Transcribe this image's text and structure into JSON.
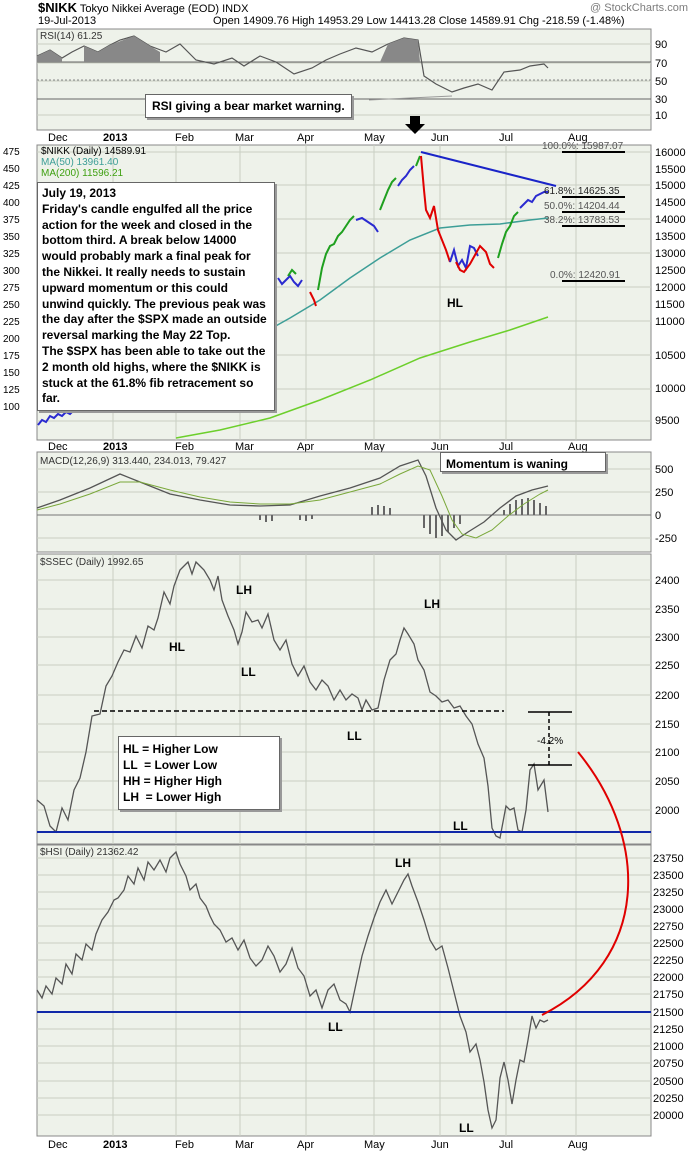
{
  "header": {
    "symbol": "$NIKK",
    "name": "Tokyo Nikkei Average (EOD)",
    "exchange": "INDX",
    "date": "19-Jul-2013",
    "ohlc": "Open 14909.76  High 14953.29  Low 14413.28  Close 14589.91  Chg -218.59 (-1.48%)",
    "watermark": "@ StockCharts.com"
  },
  "annotations": {
    "rsi_note": "RSI giving a bear market warning.",
    "momentum_note": "Momentum is waning",
    "main_note_title": "July 19, 2013",
    "main_note_body": "Friday's candle engulfed all the price action for the week and closed in the bottom third. A break below 14000 would probably mark a final peak for the Nikkei. It really needs to sustain upward momentum or this could unwind quickly. The previous peak was the day after the $SPX made an outside reversal marking the May 22 Top.\nThe $SPX has been able to take out the 2 month old highs, where the $NIKK is stuck at the 61.8% fib retracement so far.",
    "legend": [
      "HL = Higher Low",
      "LL  = Lower Low",
      "HH = Higher High",
      "LH  = Lower High"
    ],
    "pct_label": "-4.2%"
  },
  "colors": {
    "panel_bg": "#eef2ea",
    "grid": "#c9cfc3",
    "price_line": "#555555",
    "ma50": "#3d9e97",
    "ma200": "#6ccf2b",
    "trend_blue": "#1a24c8",
    "support_blue": "#1028a8",
    "curve_red": "#e00000"
  },
  "chart_data": [
    {
      "type": "line",
      "title": "RSI(14) 61.25",
      "ylim": [
        0,
        100
      ],
      "yticks": [
        10,
        30,
        50,
        70,
        90
      ],
      "x": [
        "2012-11-19",
        "2012-12-10",
        "2013-01-07",
        "2013-02-04",
        "2013-03-04",
        "2013-04-01",
        "2013-04-29",
        "2013-05-22",
        "2013-06-10",
        "2013-07-01",
        "2013-07-19"
      ],
      "values": [
        62,
        66,
        85,
        74,
        68,
        66,
        84,
        86,
        44,
        54,
        61.25
      ],
      "levels": [
        30,
        50,
        70
      ]
    },
    {
      "type": "candlestick",
      "title": "$NIKK (Daily) 14589.91",
      "series": [
        {
          "name": "$NIKK (Daily) 14589.91",
          "x": [
            "2012-11-19",
            "2012-12-17",
            "2013-01-14",
            "2013-02-11",
            "2013-03-11",
            "2013-04-01",
            "2013-04-22",
            "2013-05-22",
            "2013-05-27",
            "2013-06-13",
            "2013-06-27",
            "2013-07-08",
            "2013-07-19"
          ],
          "values": [
            9200,
            9900,
            10800,
            11300,
            12300,
            12200,
            13600,
            15627,
            14200,
            12450,
            13200,
            14400,
            14589.91
          ]
        },
        {
          "name": "MA(50) 13961.40",
          "x": [
            "2013-03-18",
            "2013-04-15",
            "2013-05-13",
            "2013-06-10",
            "2013-07-19"
          ],
          "values": [
            11400,
            12000,
            12900,
            13600,
            13961.4
          ]
        },
        {
          "name": "MA(200) 11596.21",
          "x": [
            "2012-11-19",
            "2013-01-14",
            "2013-03-11",
            "2013-05-06",
            "2013-07-19"
          ],
          "values": [
            9000,
            9300,
            10000,
            10800,
            11596.21
          ]
        }
      ],
      "ylim_right": [
        9500,
        16000
      ],
      "yticks_right": [
        9500,
        10000,
        10500,
        11000,
        11500,
        12000,
        12500,
        13000,
        13500,
        14000,
        14500,
        15000,
        15500,
        16000
      ],
      "yticks_left": [
        100,
        125,
        150,
        175,
        200,
        225,
        250,
        275,
        300,
        325,
        350,
        375,
        400,
        425,
        450,
        475
      ],
      "fib_levels": [
        {
          "label": "100.0%: 15987.07",
          "value": 15987.07
        },
        {
          "label": "61.8%: 14625.35",
          "value": 14625.35
        },
        {
          "label": "50.0%: 14204.44",
          "value": 14204.44
        },
        {
          "label": "38.2%: 13783.53",
          "value": 13783.53
        },
        {
          "label": "0.0%: 12420.91",
          "value": 12420.91
        }
      ],
      "labels": [
        "HL"
      ]
    },
    {
      "type": "line",
      "title": "MACD(12,26,9) 313.440, 234.013, 79.427",
      "yticks": [
        -250,
        0,
        250,
        500
      ],
      "ylim": [
        -375,
        600
      ]
    },
    {
      "type": "line",
      "title": "$SSEC (Daily) 1992.65",
      "ylim": [
        1950,
        2450
      ],
      "yticks": [
        2000,
        2050,
        2100,
        2150,
        2200,
        2250,
        2300,
        2350,
        2400
      ],
      "x": [
        "2012-11-26",
        "2012-12-12",
        "2013-01-07",
        "2013-02-06",
        "2013-02-25",
        "2013-03-15",
        "2013-04-15",
        "2013-05-29",
        "2013-06-25",
        "2013-07-10",
        "2013-07-19"
      ],
      "values": [
        1960,
        2100,
        2290,
        2440,
        2310,
        2260,
        2180,
        2340,
        1960,
        2070,
        1992.65
      ],
      "labels": [
        "HL",
        "LH",
        "LL",
        "LH",
        "LL",
        "LL"
      ],
      "levels": [
        2170,
        1955
      ]
    },
    {
      "type": "line",
      "title": "$HSI (Daily) 21362.42",
      "ylim": [
        19750,
        23900
      ],
      "yticks": [
        20000,
        20250,
        20500,
        20750,
        21000,
        21250,
        21500,
        21750,
        22000,
        22250,
        22500,
        22750,
        23000,
        23250,
        23500,
        23750
      ],
      "x": [
        "2012-11-19",
        "2012-12-17",
        "2013-01-14",
        "2013-02-04",
        "2013-03-11",
        "2013-04-15",
        "2013-05-20",
        "2013-06-25",
        "2013-07-08",
        "2013-07-19"
      ],
      "values": [
        21700,
        22600,
        23400,
        23800,
        22800,
        21550,
        23400,
        19800,
        21450,
        21362.42
      ],
      "labels": [
        "LL",
        "LH",
        "LL"
      ],
      "levels": [
        21500
      ]
    }
  ],
  "xaxis": [
    "Dec",
    "2013",
    "Feb",
    "Mar",
    "Apr",
    "May",
    "Jun",
    "Jul",
    "Aug"
  ]
}
